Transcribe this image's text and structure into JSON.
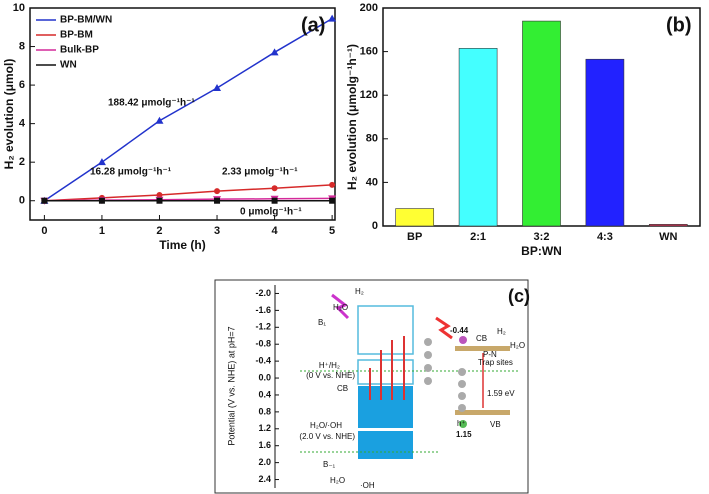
{
  "chart_data": [
    {
      "type": "line",
      "panel": "(a)",
      "x_label": "Time (h)",
      "y_label": "H₂ evolution (μmol)",
      "x": [
        0,
        1,
        2,
        3,
        4,
        5
      ],
      "series": [
        {
          "name": "BP-BM/WN",
          "color": "#2233cc",
          "marker": "triangle",
          "values": [
            0,
            2.0,
            4.15,
            5.85,
            7.7,
            9.45
          ]
        },
        {
          "name": "BP-BM",
          "color": "#d62a2a",
          "marker": "circle",
          "values": [
            0,
            0.15,
            0.3,
            0.5,
            0.65,
            0.82
          ]
        },
        {
          "name": "Bulk-BP",
          "color": "#d42a9a",
          "marker": "triangle-down",
          "values": [
            0,
            0.03,
            0.05,
            0.08,
            0.1,
            0.12
          ]
        },
        {
          "name": "WN",
          "color": "#111111",
          "marker": "square",
          "values": [
            0,
            0,
            0,
            0,
            0,
            0
          ]
        }
      ],
      "annotations": [
        "188.42 μmolg⁻¹h⁻¹",
        "16.28 μmolg⁻¹h⁻¹",
        "2.33 μmolg⁻¹h⁻¹",
        "0 μmolg⁻¹h⁻¹"
      ],
      "xlim": [
        -0.25,
        5.05
      ],
      "xticks": [
        0,
        1,
        2,
        3,
        4,
        5
      ],
      "ylim": [
        -1,
        10
      ],
      "yticks": [
        0,
        2,
        4,
        6,
        8,
        10
      ],
      "legend": "upper left"
    },
    {
      "type": "bar",
      "panel": "(b)",
      "x_label": "BP:WN",
      "y_label": "H₂ evolution (μmolg⁻¹h⁻¹)",
      "categories": [
        "BP",
        "2:1",
        "3:2",
        "4:3",
        "WN"
      ],
      "values": [
        16,
        163,
        188,
        153,
        1.5
      ],
      "colors": [
        "#ffff33",
        "#44ffff",
        "#33ee33",
        "#2222ff",
        "#cc3355"
      ],
      "ylim": [
        0,
        200
      ],
      "yticks": [
        0,
        40,
        80,
        120,
        160,
        200
      ]
    }
  ],
  "diagram": {
    "panel": "(c)",
    "y_label": "Potential (V vs. NHE) at pH=7",
    "yticks": [
      {
        "value": -2,
        "label": "-2.0"
      },
      {
        "value": -1.6,
        "label": "-1.6"
      },
      {
        "value": -1.2,
        "label": "-1.2"
      },
      {
        "value": -0.8,
        "label": "-0.8"
      },
      {
        "value": -0.4,
        "label": "-0.4"
      },
      {
        "value": 0,
        "label": "0.0"
      },
      {
        "value": 0.4,
        "label": "0.4"
      },
      {
        "value": 0.8,
        "label": "0.8"
      },
      {
        "value": 1.2,
        "label": "1.2"
      },
      {
        "value": 1.6,
        "label": "1.6"
      },
      {
        "value": 2,
        "label": "2.0"
      },
      {
        "value": 2.4,
        "label": "2.4"
      }
    ],
    "ylim": [
      -2.2,
      2.6
    ],
    "labels": [
      "H₂",
      "H₂O",
      "B₁",
      "H⁺/H₂",
      "(0 V vs. NHE)",
      "CB",
      "H₂O/·OH",
      "(2.0 V vs. NHE)",
      "B₋₁",
      "H₂O",
      "·OH",
      "-0.44",
      "CB",
      "H₂",
      "H₂O",
      "P-N",
      "Trap sites",
      "1.59 eV",
      "h⁺",
      "1.15",
      "VB"
    ]
  }
}
